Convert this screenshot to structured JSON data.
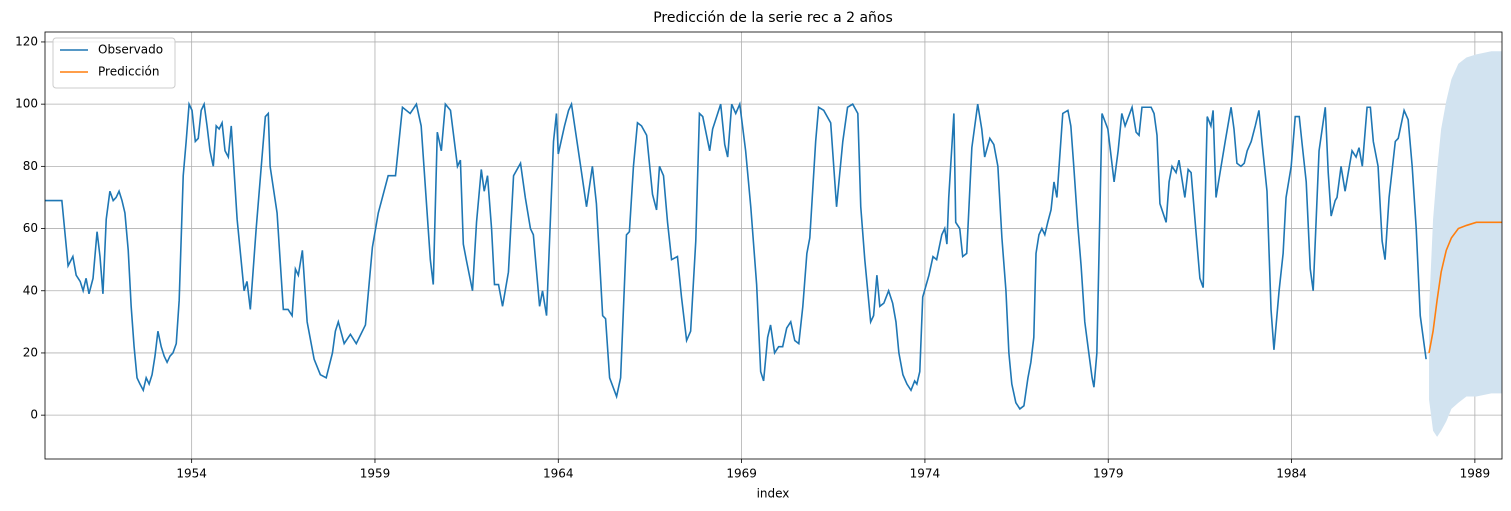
{
  "chart_data": {
    "type": "line",
    "title": "Predicción de la serie rec a 2 años",
    "xlabel": "index",
    "xlim": [
      1950.0,
      1989.74
    ],
    "xticks": [
      1954,
      1959,
      1964,
      1969,
      1974,
      1979,
      1984,
      1989
    ],
    "ylim": [
      -14.1,
      123.2
    ],
    "yticks": [
      0,
      20,
      40,
      60,
      80,
      100,
      120
    ],
    "grid": true,
    "legend": "upper left",
    "series": [
      {
        "name": "Observado",
        "color": "#1f77b4",
        "x": [
          1950.0,
          1950.46,
          1950.63,
          1950.76,
          1950.85,
          1950.96,
          1951.04,
          1951.12,
          1951.2,
          1951.31,
          1951.42,
          1951.5,
          1951.58,
          1951.67,
          1951.77,
          1951.86,
          1951.94,
          1952.02,
          1952.1,
          1952.18,
          1952.27,
          1952.35,
          1952.43,
          1952.51,
          1952.59,
          1952.68,
          1952.76,
          1952.84,
          1952.92,
          1953.0,
          1953.08,
          1953.17,
          1953.25,
          1953.33,
          1953.41,
          1953.49,
          1953.58,
          1953.66,
          1953.77,
          1953.85,
          1953.93,
          1954.01,
          1954.1,
          1954.18,
          1954.26,
          1954.34,
          1954.42,
          1954.5,
          1954.59,
          1954.67,
          1954.75,
          1954.83,
          1954.91,
          1955.0,
          1955.08,
          1955.24,
          1955.43,
          1955.51,
          1955.6,
          1955.76,
          1956.01,
          1956.09,
          1956.14,
          1956.33,
          1956.5,
          1956.63,
          1956.74,
          1956.83,
          1956.91,
          1957.02,
          1957.15,
          1957.34,
          1957.51,
          1957.67,
          1957.84,
          1957.92,
          1958.0,
          1958.16,
          1958.33,
          1958.49,
          1958.74,
          1958.93,
          1959.09,
          1959.36,
          1959.56,
          1959.75,
          1959.96,
          1960.13,
          1960.26,
          1960.51,
          1960.59,
          1960.7,
          1960.81,
          1960.92,
          1961.06,
          1961.25,
          1961.33,
          1961.41,
          1961.49,
          1961.66,
          1961.77,
          1961.9,
          1961.98,
          1962.07,
          1962.18,
          1962.26,
          1962.37,
          1962.48,
          1962.64,
          1962.78,
          1962.97,
          1963.1,
          1963.24,
          1963.32,
          1963.49,
          1963.57,
          1963.68,
          1963.87,
          1963.95,
          1964.0,
          1964.17,
          1964.28,
          1964.36,
          1964.61,
          1964.77,
          1964.93,
          1965.04,
          1965.21,
          1965.29,
          1965.4,
          1965.59,
          1965.7,
          1965.86,
          1965.94,
          1966.05,
          1966.16,
          1966.27,
          1966.41,
          1966.57,
          1966.68,
          1966.76,
          1966.87,
          1966.98,
          1967.09,
          1967.25,
          1967.36,
          1967.5,
          1967.61,
          1967.75,
          1967.85,
          1967.94,
          1968.13,
          1968.21,
          1968.43,
          1968.54,
          1968.62,
          1968.73,
          1968.84,
          1968.95,
          1969.11,
          1969.25,
          1969.41,
          1969.52,
          1969.6,
          1969.71,
          1969.79,
          1969.9,
          1970.01,
          1970.12,
          1970.23,
          1970.34,
          1970.45,
          1970.56,
          1970.67,
          1970.78,
          1970.86,
          1971.02,
          1971.1,
          1971.24,
          1971.43,
          1971.59,
          1971.76,
          1971.89,
          1972.03,
          1972.17,
          1972.25,
          1972.36,
          1972.52,
          1972.6,
          1972.69,
          1972.77,
          1972.88,
          1973.01,
          1973.12,
          1973.21,
          1973.29,
          1973.4,
          1973.51,
          1973.62,
          1973.72,
          1973.78,
          1973.86,
          1973.94,
          1974.11,
          1974.22,
          1974.32,
          1974.46,
          1974.54,
          1974.6,
          1974.65,
          1974.79,
          1974.84,
          1974.95,
          1975.03,
          1975.14,
          1975.28,
          1975.44,
          1975.55,
          1975.63,
          1975.77,
          1975.88,
          1975.99,
          1976.1,
          1976.21,
          1976.29,
          1976.37,
          1976.48,
          1976.59,
          1976.7,
          1976.81,
          1976.89,
          1976.97,
          1977.03,
          1977.11,
          1977.19,
          1977.27,
          1977.35,
          1977.44,
          1977.52,
          1977.6,
          1977.76,
          1977.9,
          1977.98,
          1978.06,
          1978.17,
          1978.26,
          1978.36,
          1978.47,
          1978.56,
          1978.61,
          1978.69,
          1978.83,
          1978.99,
          1979.16,
          1979.27,
          1979.37,
          1979.46,
          1979.65,
          1979.76,
          1979.84,
          1979.92,
          1980.17,
          1980.25,
          1980.33,
          1980.41,
          1980.58,
          1980.66,
          1980.74,
          1980.85,
          1980.93,
          1981.09,
          1981.18,
          1981.26,
          1981.4,
          1981.5,
          1981.59,
          1981.7,
          1981.8,
          1981.86,
          1981.94,
          1982.05,
          1982.19,
          1982.35,
          1982.43,
          1982.51,
          1982.62,
          1982.71,
          1982.79,
          1982.9,
          1983.01,
          1983.11,
          1983.2,
          1983.33,
          1983.44,
          1983.52,
          1983.66,
          1983.77,
          1983.85,
          1983.99,
          1984.1,
          1984.21,
          1984.29,
          1984.4,
          1984.51,
          1984.59,
          1984.75,
          1984.92,
          1985.0,
          1985.08,
          1985.19,
          1985.24,
          1985.35,
          1985.46,
          1985.65,
          1985.76,
          1985.84,
          1985.93,
          1986.06,
          1986.15,
          1986.23,
          1986.36,
          1986.47,
          1986.55,
          1986.66,
          1986.83,
          1986.91,
          1987.07,
          1987.18,
          1987.29,
          1987.4,
          1987.51,
          1987.67
        ],
        "values": [
          69,
          69,
          48,
          51,
          45,
          43,
          40,
          44,
          39,
          44,
          59,
          51,
          39,
          63,
          72,
          69,
          70,
          72,
          69,
          65,
          53,
          35,
          22,
          12,
          10,
          8,
          12,
          10,
          13,
          19,
          27,
          22,
          19,
          17,
          19,
          20,
          23,
          37,
          77,
          88,
          100,
          98,
          88,
          89,
          98,
          100,
          93,
          85,
          80,
          93,
          92,
          94,
          85,
          83,
          93,
          63,
          40,
          43,
          34,
          60,
          96,
          97,
          80,
          65,
          34,
          34,
          32,
          47,
          45,
          53,
          30,
          18,
          13,
          12,
          20,
          27,
          30,
          23,
          26,
          23,
          29,
          54,
          65,
          77,
          77,
          99,
          97,
          100,
          93,
          50,
          42,
          91,
          85,
          100,
          98,
          80,
          82,
          55,
          50,
          40,
          62,
          79,
          72,
          77,
          60,
          42,
          42,
          35,
          46,
          77,
          81,
          70,
          60,
          58,
          35,
          40,
          32,
          88,
          97,
          84,
          93,
          98,
          100,
          80,
          67,
          80,
          68,
          32,
          31,
          12,
          6,
          12,
          58,
          59,
          80,
          94,
          93,
          90,
          71,
          66,
          80,
          77,
          62,
          50,
          51,
          38,
          24,
          27,
          56,
          97,
          96,
          85,
          92,
          100,
          87,
          83,
          100,
          97,
          100,
          85,
          67,
          42,
          14,
          11,
          25,
          29,
          20,
          22,
          22,
          28,
          30,
          24,
          23,
          35,
          52,
          57,
          88,
          99,
          98,
          94,
          67,
          88,
          99,
          100,
          97,
          67,
          50,
          30,
          32,
          45,
          35,
          36,
          40,
          36,
          30,
          20,
          13,
          10,
          8,
          11,
          10,
          14,
          38,
          45,
          51,
          50,
          58,
          60,
          55,
          70,
          97,
          62,
          60,
          51,
          52,
          86,
          100,
          92,
          83,
          89,
          87,
          80,
          57,
          40,
          20,
          10,
          4,
          2,
          3,
          12,
          17,
          25,
          52,
          58,
          60,
          58,
          62,
          66,
          75,
          70,
          97,
          98,
          93,
          80,
          61,
          48,
          30,
          20,
          12,
          9,
          20,
          97,
          92,
          75,
          85,
          97,
          93,
          99,
          91,
          90,
          99,
          99,
          97,
          90,
          68,
          62,
          75,
          80,
          78,
          82,
          70,
          79,
          78,
          58,
          44,
          41,
          96,
          93,
          98,
          70,
          78,
          88,
          99,
          92,
          81,
          80,
          81,
          85,
          88,
          93,
          98,
          87,
          72,
          34,
          21,
          40,
          52,
          70,
          80,
          96,
          96,
          87,
          75,
          47,
          40,
          85,
          99,
          78,
          64,
          69,
          70,
          80,
          72,
          85,
          83,
          86,
          80,
          99,
          99,
          88,
          80,
          56,
          50,
          70,
          88,
          89,
          98,
          95,
          80,
          60,
          32,
          18
        ]
      },
      {
        "name": "Predicción",
        "color": "#ff7f0e",
        "x": [
          1987.75,
          1987.86,
          1987.97,
          1988.08,
          1988.22,
          1988.36,
          1988.55,
          1988.77,
          1989.04,
          1989.45,
          1989.74
        ],
        "values": [
          20,
          27,
          37,
          46,
          53,
          57,
          60,
          61,
          62,
          62,
          62
        ],
        "interval": {
          "color": "#d2e3f0",
          "upper": [
            34,
            63,
            79,
            92,
            101,
            108,
            113,
            115,
            116,
            117,
            117
          ],
          "lower": [
            5,
            -5,
            -7,
            -5,
            -2,
            2,
            4,
            6,
            6,
            7,
            7
          ]
        }
      }
    ]
  }
}
